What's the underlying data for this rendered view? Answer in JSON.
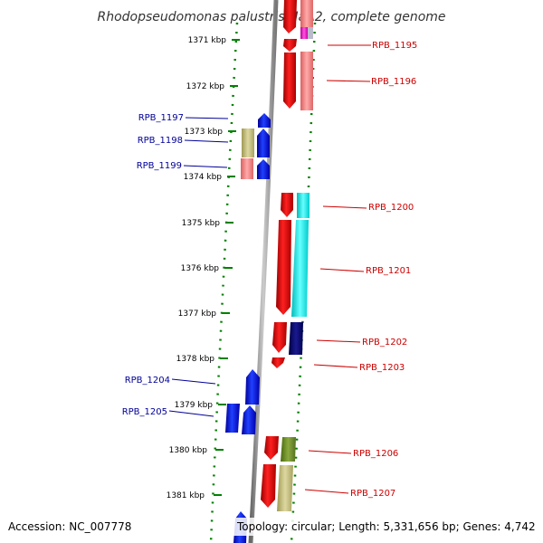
{
  "title": "Rhodopseudomonas palustris HaA2, complete genome",
  "footer": {
    "accession": "Accession: NC_007778",
    "summary": "Topology: circular; Length: 5,331,656 bp; Genes: 4,742"
  },
  "ticks": [
    {
      "label": "1371 kbp",
      "kbp": 1371
    },
    {
      "label": "1372 kbp",
      "kbp": 1372
    },
    {
      "label": "1373 kbp",
      "kbp": 1373
    },
    {
      "label": "1374 kbp",
      "kbp": 1374
    },
    {
      "label": "1375 kbp",
      "kbp": 1375
    },
    {
      "label": "1376 kbp",
      "kbp": 1376
    },
    {
      "label": "1377 kbp",
      "kbp": 1377
    },
    {
      "label": "1378 kbp",
      "kbp": 1378
    },
    {
      "label": "1379 kbp",
      "kbp": 1379
    },
    {
      "label": "1380 kbp",
      "kbp": 1380
    },
    {
      "label": "1381 kbp",
      "kbp": 1381
    }
  ],
  "genes": [
    {
      "label": "",
      "strand": "forward"
    },
    {
      "label": "RPB_1195",
      "strand": "forward"
    },
    {
      "label": "RPB_1196",
      "strand": "forward"
    },
    {
      "label": "RPB_1197",
      "strand": "reverse"
    },
    {
      "label": "RPB_1198",
      "strand": "reverse"
    },
    {
      "label": "RPB_1199",
      "strand": "reverse"
    },
    {
      "label": "RPB_1200",
      "strand": "forward"
    },
    {
      "label": "RPB_1201",
      "strand": "forward"
    },
    {
      "label": "RPB_1202",
      "strand": "forward"
    },
    {
      "label": "RPB_1203",
      "strand": "forward"
    },
    {
      "label": "RPB_1204",
      "strand": "reverse"
    },
    {
      "label": "RPB_1205",
      "strand": "reverse"
    },
    {
      "label": "RPB_1206",
      "strand": "forward"
    },
    {
      "label": "RPB_1207",
      "strand": "forward"
    },
    {
      "label": "",
      "strand": "reverse"
    }
  ],
  "colors": {
    "forward_gene": "#ff0000",
    "reverse_gene": "#0000ff",
    "backbone": "#888888",
    "dotted_ring": "#008000",
    "label_forward": "#cc0000",
    "label_reverse": "#000099",
    "cog_pink": "#ee8080",
    "cog_cyan": "#00e8e8",
    "cog_navy": "#000070",
    "cog_olive": "#6b8e23",
    "cog_khaki": "#bdb76b",
    "cog_magenta": "#ff00cc"
  }
}
